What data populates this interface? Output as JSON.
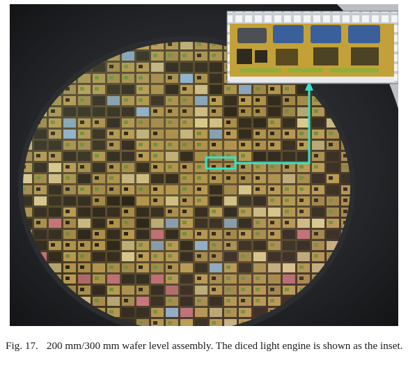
{
  "figure": {
    "image_description_icon": "wafer-with-light-engine-inset-photo",
    "colors": {
      "background": "#1b1d20",
      "wafer_rim": "#2b2d30",
      "highlight": "#35e3c9",
      "die_gold": "#b89a4e",
      "die_dark": "#2a2418",
      "die_blue": "#8fb2cf",
      "die_pink": "#c9727a"
    }
  },
  "caption": {
    "label": "Fig. 17.",
    "text": "200 mm/300 mm wafer level assembly. The diced light engine is shown as the inset."
  }
}
